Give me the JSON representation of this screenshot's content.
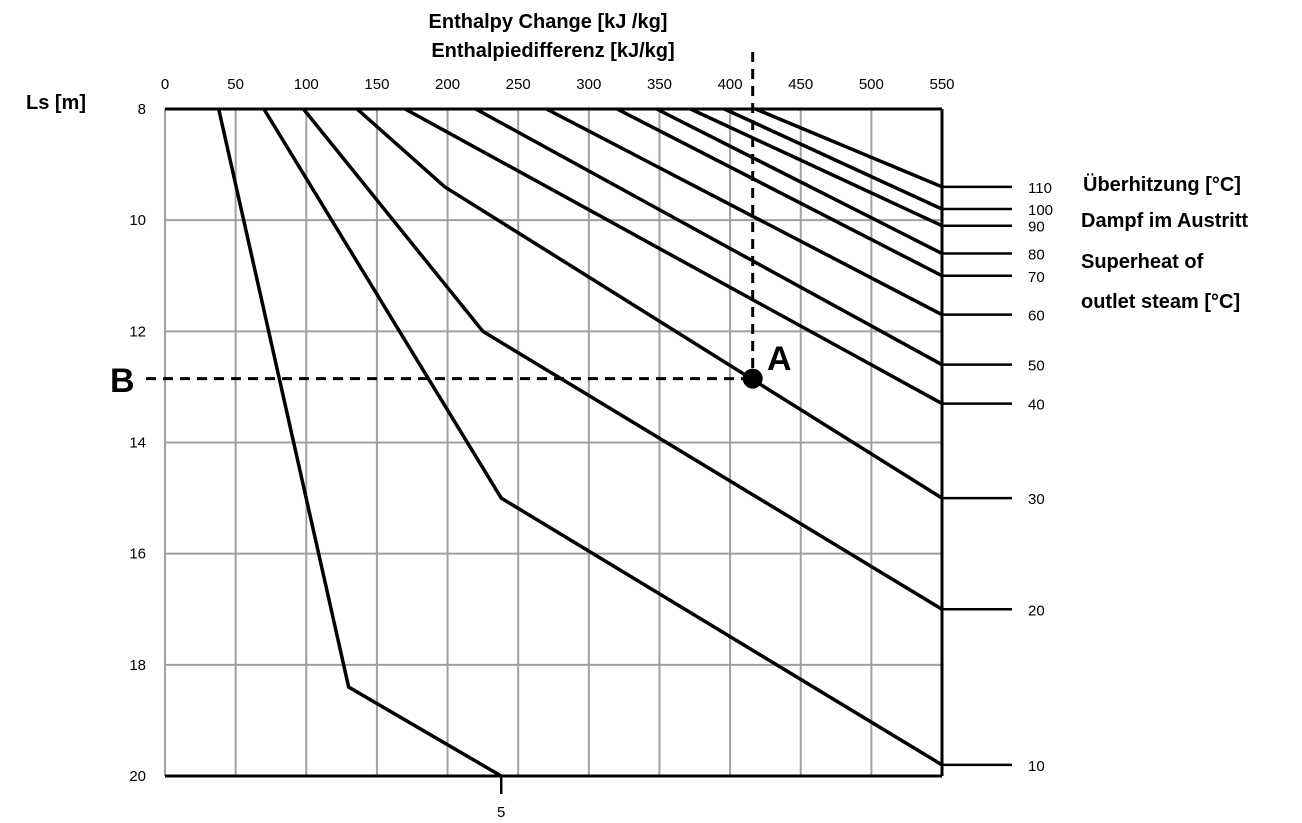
{
  "chart_data": {
    "type": "line",
    "title_line1": "Enthalpy Change [kJ /kg]",
    "title_line2": "Enthalpiedifferenz  [kJ/kg]",
    "xlabel": "Enthalpy Change [kJ /kg] / Enthalpiedifferenz [kJ/kg]",
    "ylabel": "Ls [m]",
    "x_axis_position": "top",
    "y_axis_inverted": true,
    "xlim": [
      0,
      550
    ],
    "ylim": [
      8,
      20
    ],
    "x_ticks": [
      "0",
      "50",
      "100",
      "150",
      "200",
      "250",
      "300",
      "350",
      "400",
      "450",
      "500",
      "550"
    ],
    "y_ticks": [
      "8",
      "10",
      "12",
      "14",
      "16",
      "18",
      "20"
    ],
    "grid": true,
    "legend_title": [
      "Überhitzung [°C]",
      "Dampf im Austritt",
      "Superheat of",
      "outlet steam [°C]"
    ],
    "series": [
      {
        "name": "5",
        "points": [
          [
            38,
            8
          ],
          [
            130,
            18.4
          ],
          [
            238,
            20
          ]
        ],
        "end_label": "5",
        "label_at": "bottom"
      },
      {
        "name": "10",
        "points": [
          [
            70,
            8
          ],
          [
            238,
            15
          ],
          [
            550,
            19.8
          ]
        ],
        "end_label": "10"
      },
      {
        "name": "20",
        "points": [
          [
            98,
            8
          ],
          [
            225,
            12
          ],
          [
            550,
            17
          ]
        ],
        "end_label": "20"
      },
      {
        "name": "30",
        "points": [
          [
            136,
            8
          ],
          [
            198,
            9.4
          ],
          [
            550,
            15
          ]
        ],
        "end_label": "30"
      },
      {
        "name": "40",
        "points": [
          [
            170,
            8
          ],
          [
            550,
            13.3
          ]
        ],
        "end_label": "40"
      },
      {
        "name": "50",
        "points": [
          [
            220,
            8
          ],
          [
            550,
            12.6
          ]
        ],
        "end_label": "50"
      },
      {
        "name": "60",
        "points": [
          [
            270,
            8
          ],
          [
            550,
            11.7
          ]
        ],
        "end_label": "60"
      },
      {
        "name": "70",
        "points": [
          [
            320,
            8
          ],
          [
            550,
            11
          ]
        ],
        "end_label": "70"
      },
      {
        "name": "80",
        "points": [
          [
            348,
            8
          ],
          [
            550,
            10.6
          ]
        ],
        "end_label": "80"
      },
      {
        "name": "90",
        "points": [
          [
            372,
            8
          ],
          [
            550,
            10.1
          ]
        ],
        "end_label": "90"
      },
      {
        "name": "100",
        "points": [
          [
            396,
            8
          ],
          [
            550,
            9.8
          ]
        ],
        "end_label": "100"
      },
      {
        "name": "110",
        "points": [
          [
            418,
            8
          ],
          [
            550,
            9.4
          ]
        ],
        "end_label": "110"
      }
    ],
    "reference_point": {
      "label": "A",
      "x": 416,
      "y": 12.85
    },
    "reference_label_y": "B"
  }
}
